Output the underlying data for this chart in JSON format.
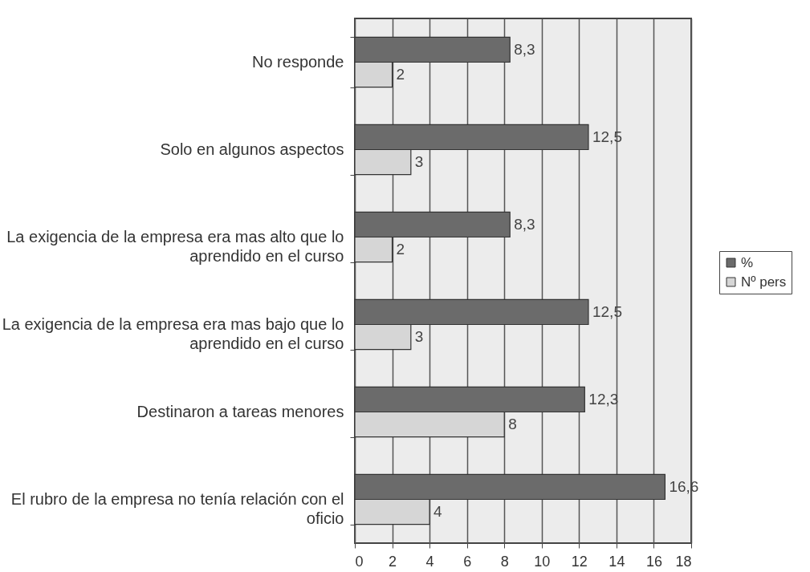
{
  "chart_data": {
    "type": "bar",
    "orientation": "horizontal",
    "categories": [
      "No responde",
      "Solo en algunos aspectos",
      "La exigencia de la empresa era mas alto que lo aprendido en el curso",
      "La exigencia de la empresa era mas bajo que lo aprendido en el curso",
      "Destinaron a tareas menores",
      "El rubro de la empresa no tenía relación con el oficio"
    ],
    "series": [
      {
        "name": "%",
        "color": "#6b6b6b",
        "values": [
          8.3,
          12.5,
          8.3,
          12.5,
          12.3,
          16.6
        ],
        "value_labels": [
          "8,3",
          "12,5",
          "8,3",
          "12,5",
          "12,3",
          "16,6"
        ]
      },
      {
        "name": "Nº pers",
        "color": "#d6d6d6",
        "values": [
          2,
          3,
          2,
          3,
          8,
          4
        ],
        "value_labels": [
          "2",
          "3",
          "2",
          "3",
          "8",
          "4"
        ]
      }
    ],
    "xlim": [
      0,
      18
    ],
    "xticks": [
      0,
      2,
      4,
      6,
      8,
      10,
      12,
      14,
      16,
      18
    ],
    "grid": "x",
    "legend": "right"
  }
}
